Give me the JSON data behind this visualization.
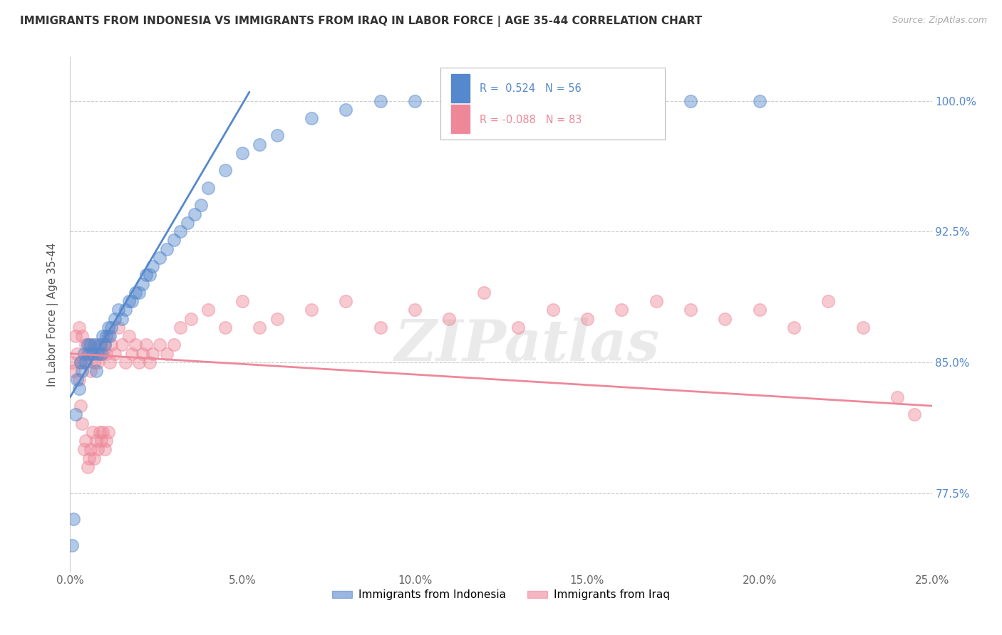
{
  "title": "IMMIGRANTS FROM INDONESIA VS IMMIGRANTS FROM IRAQ IN LABOR FORCE | AGE 35-44 CORRELATION CHART",
  "source": "Source: ZipAtlas.com",
  "ylabel": "In Labor Force | Age 35-44",
  "xlim": [
    0.0,
    25.0
  ],
  "ylim": [
    73.0,
    102.5
  ],
  "yticks": [
    77.5,
    85.0,
    92.5,
    100.0
  ],
  "xticks": [
    0.0,
    5.0,
    10.0,
    15.0,
    20.0,
    25.0
  ],
  "xtick_labels": [
    "0.0%",
    "5.0%",
    "10.0%",
    "15.0%",
    "20.0%",
    "25.0%"
  ],
  "ytick_labels": [
    "77.5%",
    "85.0%",
    "92.5%",
    "100.0%"
  ],
  "indonesia_color": "#5588CC",
  "iraq_color": "#EE8899",
  "indonesia_R": 0.524,
  "indonesia_N": 56,
  "iraq_R": -0.088,
  "iraq_N": 83,
  "legend_label_indonesia": "Immigrants from Indonesia",
  "legend_label_iraq": "Immigrants from Iraq",
  "watermark": "ZIPatlas",
  "indonesia_scatter_x": [
    0.05,
    0.1,
    0.15,
    0.2,
    0.25,
    0.3,
    0.35,
    0.4,
    0.45,
    0.5,
    0.55,
    0.6,
    0.65,
    0.7,
    0.75,
    0.8,
    0.85,
    0.9,
    0.95,
    1.0,
    1.05,
    1.1,
    1.15,
    1.2,
    1.3,
    1.4,
    1.5,
    1.6,
    1.7,
    1.8,
    1.9,
    2.0,
    2.1,
    2.2,
    2.3,
    2.4,
    2.6,
    2.8,
    3.0,
    3.2,
    3.4,
    3.6,
    3.8,
    4.0,
    4.5,
    5.0,
    5.5,
    6.0,
    7.0,
    8.0,
    9.0,
    10.0,
    12.0,
    15.0,
    18.0,
    20.0
  ],
  "indonesia_scatter_y": [
    74.5,
    76.0,
    82.0,
    84.0,
    83.5,
    85.0,
    84.5,
    85.5,
    85.0,
    86.0,
    85.5,
    86.0,
    85.5,
    86.0,
    84.5,
    85.5,
    86.0,
    85.5,
    86.5,
    86.0,
    86.5,
    87.0,
    86.5,
    87.0,
    87.5,
    88.0,
    87.5,
    88.0,
    88.5,
    88.5,
    89.0,
    89.0,
    89.5,
    90.0,
    90.0,
    90.5,
    91.0,
    91.5,
    92.0,
    92.5,
    93.0,
    93.5,
    94.0,
    95.0,
    96.0,
    97.0,
    97.5,
    98.0,
    99.0,
    99.5,
    100.0,
    100.0,
    100.0,
    100.0,
    100.0,
    100.0
  ],
  "iraq_scatter_x": [
    0.05,
    0.1,
    0.15,
    0.2,
    0.25,
    0.3,
    0.35,
    0.4,
    0.45,
    0.5,
    0.55,
    0.6,
    0.65,
    0.7,
    0.75,
    0.8,
    0.85,
    0.9,
    0.95,
    1.0,
    1.05,
    1.1,
    1.15,
    1.2,
    1.3,
    1.4,
    1.5,
    1.6,
    1.7,
    1.8,
    1.9,
    2.0,
    2.1,
    2.2,
    2.3,
    2.4,
    2.6,
    2.8,
    3.0,
    3.2,
    3.5,
    4.0,
    4.5,
    5.0,
    5.5,
    6.0,
    7.0,
    8.0,
    9.0,
    10.0,
    11.0,
    12.0,
    13.0,
    14.0,
    15.0,
    16.0,
    17.0,
    18.0,
    19.0,
    20.0,
    21.0,
    22.0,
    23.0,
    24.0,
    24.5,
    0.25,
    0.3,
    0.35,
    0.4,
    0.45,
    0.5,
    0.55,
    0.6,
    0.65,
    0.7,
    0.75,
    0.8,
    0.85,
    0.9,
    0.95,
    1.0,
    1.05,
    1.1
  ],
  "iraq_scatter_y": [
    85.0,
    84.5,
    86.5,
    85.5,
    87.0,
    85.0,
    86.5,
    85.0,
    86.0,
    85.5,
    86.0,
    84.5,
    85.5,
    85.0,
    86.0,
    85.0,
    85.5,
    86.0,
    85.5,
    86.0,
    85.5,
    86.5,
    85.0,
    86.0,
    85.5,
    87.0,
    86.0,
    85.0,
    86.5,
    85.5,
    86.0,
    85.0,
    85.5,
    86.0,
    85.0,
    85.5,
    86.0,
    85.5,
    86.0,
    87.0,
    87.5,
    88.0,
    87.0,
    88.5,
    87.0,
    87.5,
    88.0,
    88.5,
    87.0,
    88.0,
    87.5,
    89.0,
    87.0,
    88.0,
    87.5,
    88.0,
    88.5,
    88.0,
    87.5,
    88.0,
    87.0,
    88.5,
    87.0,
    83.0,
    82.0,
    84.0,
    82.5,
    81.5,
    80.0,
    80.5,
    79.0,
    79.5,
    80.0,
    81.0,
    79.5,
    80.5,
    80.0,
    81.0,
    80.5,
    81.0,
    80.0,
    80.5,
    81.0
  ],
  "indonesia_line_x": [
    0.0,
    5.2
  ],
  "indonesia_line_y": [
    83.0,
    100.5
  ],
  "iraq_line_x": [
    0.0,
    25.0
  ],
  "iraq_line_y": [
    85.5,
    82.5
  ]
}
